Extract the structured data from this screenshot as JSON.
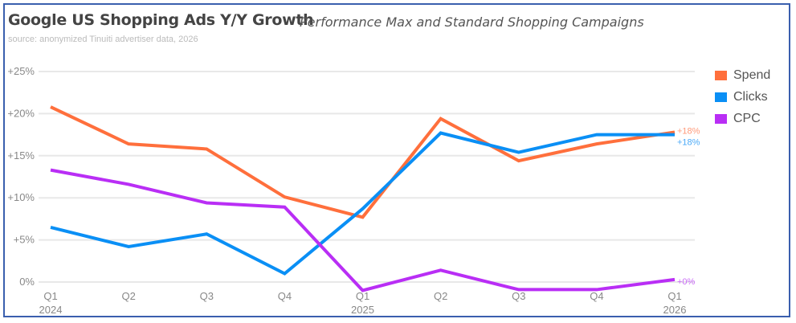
{
  "chart_data": {
    "type": "line",
    "title": "Google US Shopping Ads Y/Y Growth",
    "subtitle": "Performance Max and Standard Shopping Campaigns",
    "source": "source: anonymized Tinuiti advertiser data, 2026",
    "categories": [
      {
        "q": "Q1",
        "year": "2024"
      },
      {
        "q": "Q2",
        "year": ""
      },
      {
        "q": "Q3",
        "year": ""
      },
      {
        "q": "Q4",
        "year": ""
      },
      {
        "q": "Q1",
        "year": "2025"
      },
      {
        "q": "Q2",
        "year": ""
      },
      {
        "q": "Q3",
        "year": ""
      },
      {
        "q": "Q4",
        "year": ""
      },
      {
        "q": "Q1",
        "year": "2026"
      }
    ],
    "ylim": [
      0,
      25
    ],
    "yticks": [
      {
        "v": 0,
        "label": "0%"
      },
      {
        "v": 5,
        "label": "+5%"
      },
      {
        "v": 10,
        "label": "+10%"
      },
      {
        "v": 15,
        "label": "+15%"
      },
      {
        "v": 20,
        "label": "+20%"
      },
      {
        "v": 25,
        "label": "+25%"
      }
    ],
    "grid": true,
    "legend_position": "right",
    "series": [
      {
        "name": "Spend",
        "color": "#ff6f3c",
        "label_color": "#ff9a7a",
        "values": [
          20.8,
          16.4,
          15.8,
          10.1,
          7.7,
          19.4,
          14.4,
          16.4,
          17.8
        ],
        "end_label": "+18%"
      },
      {
        "name": "Clicks",
        "color": "#0a8ff5",
        "label_color": "#4aa9f7",
        "values": [
          6.5,
          4.2,
          5.7,
          1.0,
          8.7,
          17.7,
          15.4,
          17.5,
          17.5
        ],
        "end_label": "+18%"
      },
      {
        "name": "CPC",
        "color": "#b92ef5",
        "label_color": "#c96af7",
        "values": [
          13.3,
          11.6,
          9.4,
          8.9,
          -1.0,
          1.4,
          -0.9,
          -0.9,
          0.3
        ],
        "end_label": "+0%"
      }
    ]
  }
}
